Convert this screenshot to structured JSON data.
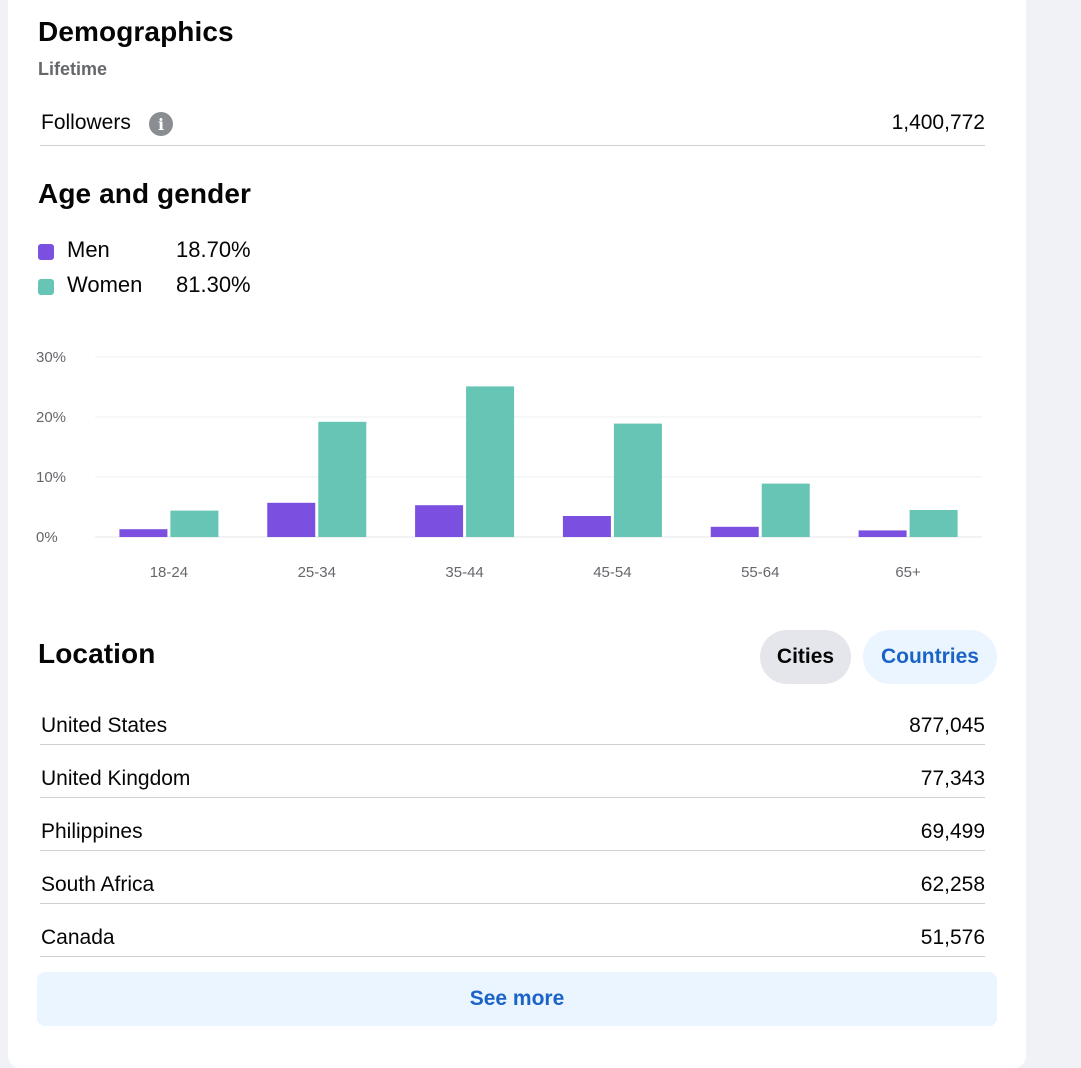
{
  "demographics": {
    "title": "Demographics",
    "subtitle": "Lifetime",
    "followers_label": "Followers",
    "followers_value": "1,400,772"
  },
  "age_gender": {
    "title": "Age and gender",
    "legend": [
      {
        "label": "Men",
        "value": "18.70%",
        "color": "#7b50e0"
      },
      {
        "label": "Women",
        "value": "81.30%",
        "color": "#66c5b4"
      }
    ]
  },
  "chart_data": {
    "type": "bar",
    "categories": [
      "18-24",
      "25-34",
      "35-44",
      "45-54",
      "55-64",
      "65+"
    ],
    "series": [
      {
        "name": "Men",
        "values": [
          1.3,
          5.7,
          5.3,
          3.5,
          1.7,
          1.1
        ],
        "color": "#7b50e0"
      },
      {
        "name": "Women",
        "values": [
          4.4,
          19.2,
          25.1,
          18.9,
          8.9,
          4.5
        ],
        "color": "#66c5b4"
      }
    ],
    "yticks": [
      "0%",
      "10%",
      "20%",
      "30%"
    ],
    "ylim": [
      0,
      30
    ],
    "grid": true,
    "legend": "top-left"
  },
  "location": {
    "title": "Location",
    "tab_cities": "Cities",
    "tab_countries": "Countries",
    "rows": [
      {
        "name": "United States",
        "value": "877,045"
      },
      {
        "name": "United Kingdom",
        "value": "77,343"
      },
      {
        "name": "Philippines",
        "value": "69,499"
      },
      {
        "name": "South Africa",
        "value": "62,258"
      },
      {
        "name": "Canada",
        "value": "51,576"
      }
    ],
    "see_more": "See more"
  },
  "icons": {
    "info": "info-icon"
  }
}
